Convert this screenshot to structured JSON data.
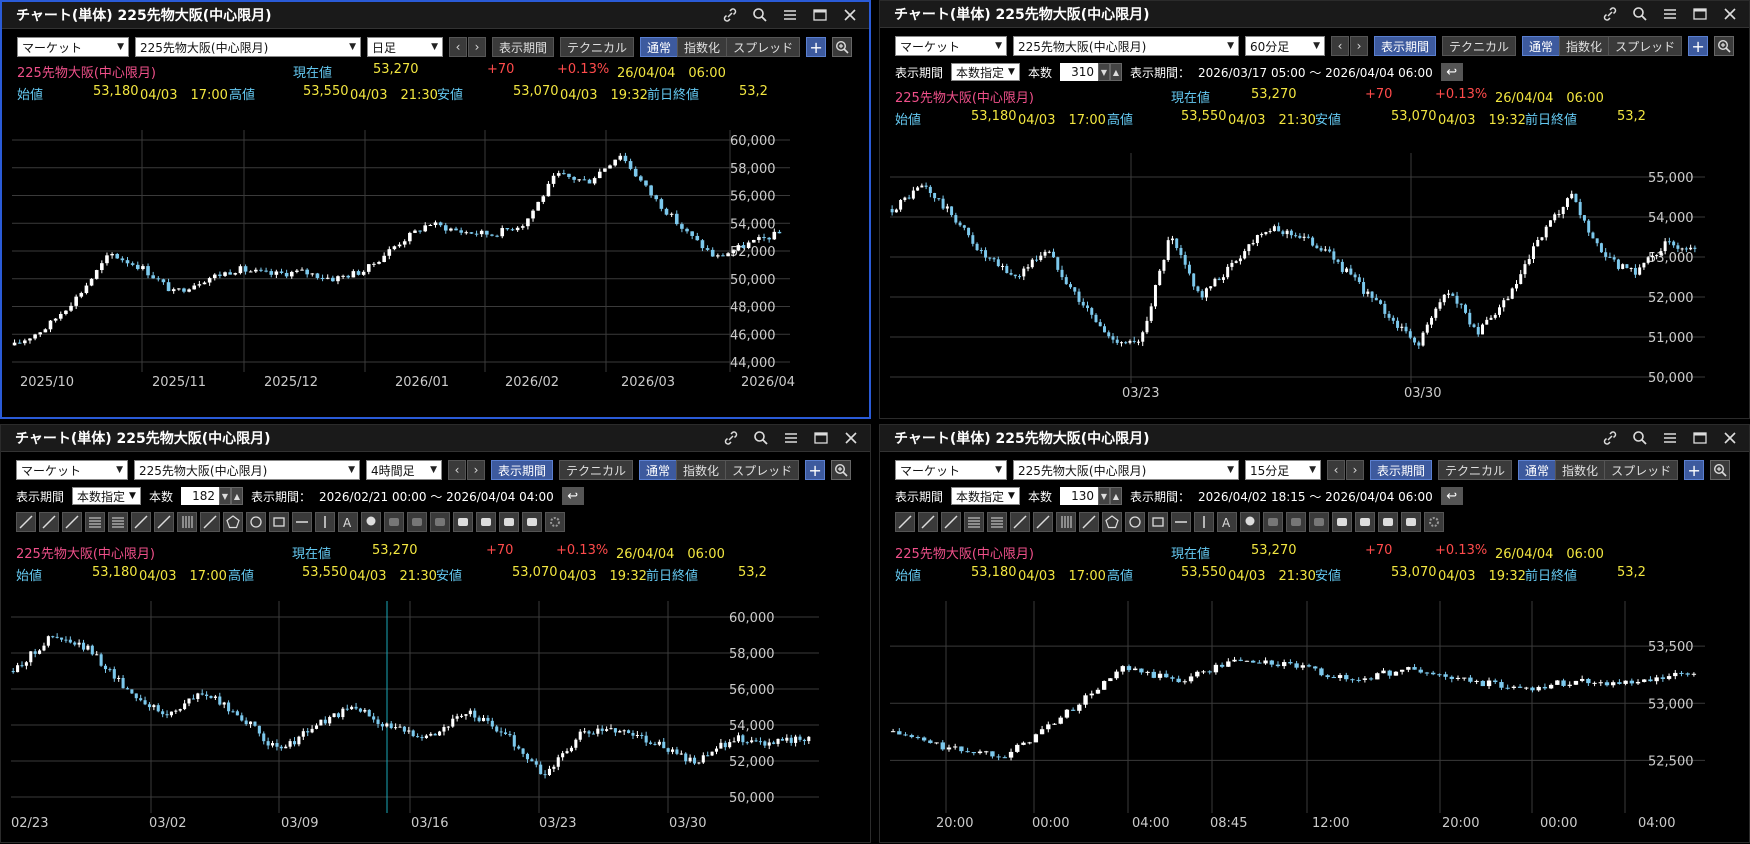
{
  "common": {
    "title": "チャート(単体) 225先物大阪(中心限月)",
    "market": "マーケット",
    "symbol": "225先物大阪(中心限月)",
    "btn_period": "表示期間",
    "btn_technical": "テクニカル",
    "btn_normal": "通常",
    "btn_index": "指数化",
    "btn_spread": "スプレッド",
    "plus": "+",
    "period_label": "表示期間",
    "period_mode": "本数指定",
    "count_label": "本数",
    "range_label": "表示期間：",
    "info": {
      "name": "225先物大阪(中心限月)",
      "current_label": "現在値",
      "current": "53,270",
      "change": "+70",
      "change_pct": "+0.13%",
      "datetime": "26/04/04　06:00",
      "open_label": "始値",
      "open": "53,180",
      "open_time": "04/03　17:00",
      "high_label": "高値",
      "high": "53,550",
      "high_time": "04/03　21:30",
      "low_label": "安値",
      "low": "53,070",
      "low_time": "04/03　19:32",
      "prev_label": "前日終値",
      "prev": "53,2"
    },
    "colors": {
      "up": "#ffffff",
      "down": "#7cc8ec",
      "accent": "#3d5a9e",
      "active_border": "#2a5bd7"
    }
  },
  "panels": [
    {
      "timeframe": "日足",
      "ylabels": [
        "60,000",
        "58,000",
        "56,000",
        "54,000",
        "52,000",
        "50,000",
        "48,000",
        "46,000",
        "44,000"
      ],
      "xlabels": [
        "2025/10",
        "2025/11",
        "2025/12",
        "2026/01",
        "2026/02",
        "2026/03",
        "2026/04"
      ]
    },
    {
      "timeframe": "60分足",
      "count": "310",
      "range": "2026/03/17 05:00 ～ 2026/04/04 06:00",
      "ylabels": [
        "55,000",
        "54,000",
        "53,000",
        "52,000",
        "51,000",
        "50,000"
      ],
      "xlabels": [
        "03/23",
        "03/30"
      ]
    },
    {
      "timeframe": "4時間足",
      "count": "182",
      "range": "2026/02/21 00:00 ～ 2026/04/04 04:00",
      "ylabels": [
        "60,000",
        "58,000",
        "56,000",
        "54,000",
        "52,000",
        "50,000"
      ],
      "xlabels": [
        "02/23",
        "03/02",
        "03/09",
        "03/16",
        "03/23",
        "03/30"
      ]
    },
    {
      "timeframe": "15分足",
      "count": "130",
      "range": "2026/04/02 18:15 ～ 2026/04/04 06:00",
      "ylabels": [
        "53,500",
        "53,000",
        "52,500"
      ],
      "xlabels": [
        "20:00",
        "00:00",
        "04:00",
        "08:45",
        "12:00",
        "20:00",
        "00:00",
        "04:00"
      ]
    }
  ],
  "chart_data": [
    {
      "type": "candlestick",
      "timeframe": "日足",
      "x_range": [
        "2025/10",
        "2026/04"
      ],
      "ylim": [
        44000,
        60000
      ],
      "close": [
        45200,
        46500,
        48800,
        51800,
        50800,
        49000,
        50000,
        50700,
        50300,
        50500,
        50000,
        50600,
        52500,
        54000,
        53400,
        53200,
        54000,
        57500,
        57000,
        59000,
        56000,
        53500,
        51500,
        52500,
        53270
      ]
    },
    {
      "type": "candlestick",
      "timeframe": "60分足",
      "x_range": [
        "2026/03/17 05:00",
        "2026/04/04 06:00"
      ],
      "ylim": [
        50000,
        55000
      ],
      "close": [
        54200,
        54800,
        54000,
        53000,
        52500,
        53200,
        52000,
        51000,
        50800,
        53500,
        52000,
        52800,
        53700,
        53600,
        53200,
        52400,
        51600,
        50800,
        52200,
        51100,
        52000,
        53500,
        54500,
        53000,
        52600,
        53300,
        53270
      ]
    },
    {
      "type": "candlestick",
      "timeframe": "4時間足",
      "x_range": [
        "2026/02/21 00:00",
        "2026/04/04 04:00"
      ],
      "ylim": [
        50000,
        60000
      ],
      "close": [
        57000,
        58900,
        58200,
        56000,
        54500,
        55800,
        54500,
        52500,
        54000,
        55000,
        53800,
        53400,
        54700,
        53500,
        51200,
        53500,
        53800,
        53000,
        51800,
        53300,
        53000,
        53270
      ]
    },
    {
      "type": "candlestick",
      "timeframe": "15分足",
      "x_range": [
        "2026/04/02 18:15",
        "2026/04/04 06:00"
      ],
      "ylim": [
        52250,
        53650
      ],
      "close": [
        52750,
        52600,
        52550,
        52900,
        53300,
        53200,
        53380,
        53330,
        53200,
        53300,
        53200,
        53130,
        53200,
        53170,
        53270
      ]
    }
  ]
}
